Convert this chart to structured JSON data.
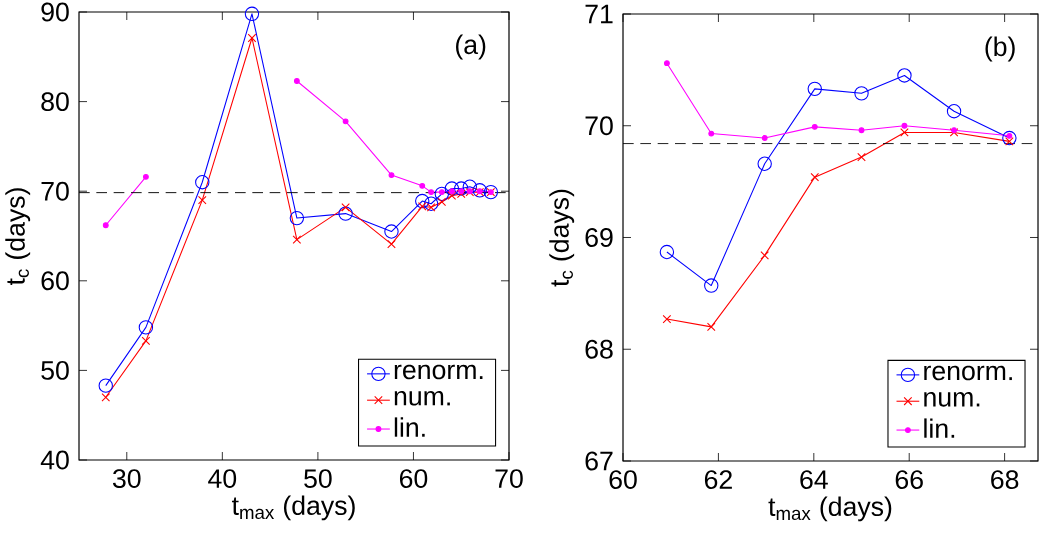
{
  "chart_data": [
    {
      "type": "line",
      "xlabel": "t$_{max}$ (days)",
      "ylabel": "t$_{c}$ (days)",
      "annotations": [
        "(a)"
      ],
      "x": [
        27.8,
        32.0,
        37.9,
        43.1,
        47.8,
        52.9,
        57.7,
        60.92,
        61.85,
        62.97,
        64.02,
        65.0,
        65.9,
        66.94,
        68.1
      ],
      "series": [
        {
          "name": "renorm.",
          "color": "#0000ff",
          "marker": "circle",
          "values": [
            48.3,
            54.8,
            71.0,
            89.8,
            67.0,
            67.5,
            65.5,
            68.9,
            68.6,
            69.7,
            70.3,
            70.3,
            70.5,
            70.1,
            69.9
          ]
        },
        {
          "name": "num.",
          "color": "#ff0000",
          "marker": "cross",
          "values": [
            47.0,
            53.3,
            69.0,
            87.1,
            64.6,
            68.2,
            64.1,
            68.3,
            68.2,
            68.8,
            69.5,
            69.7,
            69.9,
            69.9,
            69.9
          ]
        },
        {
          "name": "lin.",
          "color": "#ff00ff",
          "marker": "circle",
          "values": [
            66.2,
            71.6,
            null,
            null,
            82.3,
            77.8,
            71.8,
            70.6,
            69.9,
            69.9,
            70.0,
            70.0,
            70.0,
            70.0,
            69.9
          ]
        }
      ],
      "xlim": [
        25,
        70
      ],
      "ylim": [
        40,
        90
      ],
      "xticks": [
        30,
        40,
        50,
        60,
        70
      ],
      "yticks": [
        40,
        50,
        60,
        70,
        80,
        90
      ],
      "ref_lines": [
        {
          "axis": "y",
          "value": 69.84,
          "color": "#000000",
          "line_style": "dashed"
        }
      ],
      "legend": "bottom right",
      "grid": false
    },
    {
      "type": "line",
      "xlabel": "t$_{max}$ (days)",
      "ylabel": "t$_{c}$ (days)",
      "annotations": [
        "(b)"
      ],
      "x": [
        60.92,
        61.85,
        62.97,
        64.02,
        65.0,
        65.9,
        66.94,
        68.1
      ],
      "series": [
        {
          "name": "renorm.",
          "color": "#0000ff",
          "marker": "circle",
          "values": [
            68.87,
            68.57,
            69.66,
            70.33,
            70.29,
            70.45,
            70.13,
            69.89
          ]
        },
        {
          "name": "num.",
          "color": "#ff0000",
          "marker": "cross",
          "values": [
            68.27,
            68.2,
            68.84,
            69.54,
            69.72,
            69.94,
            69.94,
            69.86
          ]
        },
        {
          "name": "lin.",
          "color": "#ff00ff",
          "marker": "circle",
          "values": [
            70.56,
            69.93,
            69.89,
            69.99,
            69.96,
            70.0,
            69.96,
            69.91
          ]
        }
      ],
      "xlim": [
        60,
        68.7
      ],
      "ylim": [
        67,
        71
      ],
      "xticks": [
        60,
        62,
        64,
        66,
        68
      ],
      "yticks": [
        67,
        68,
        69,
        70,
        71
      ],
      "ref_lines": [
        {
          "axis": "y",
          "value": 69.84,
          "color": "#000000",
          "line_style": "dashed"
        }
      ],
      "legend": "bottom right",
      "grid": false
    }
  ]
}
